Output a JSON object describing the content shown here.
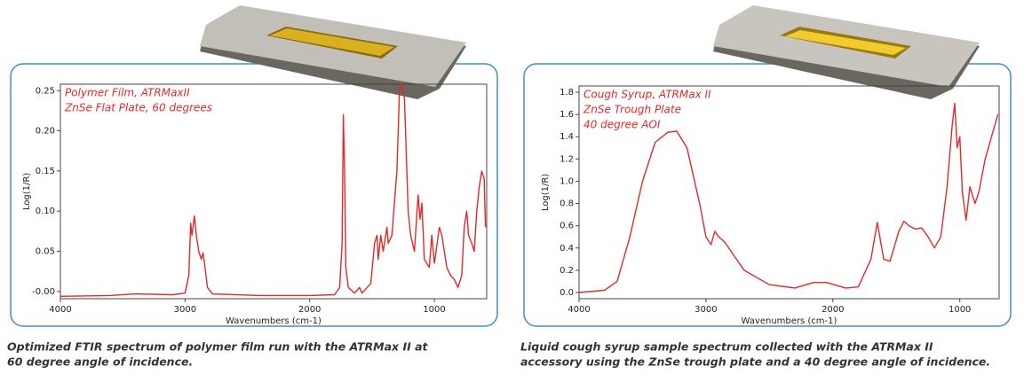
{
  "chart_data": [
    {
      "type": "line",
      "annotations": [
        "Polymer Film, ATRMaxII",
        "ZnSe Flat Plate, 60 degrees"
      ],
      "x_label": "Wavenumbers (cm-1)",
      "y_label": "Log(1/R)",
      "caption": [
        "Optimized FTIR spectrum of polymer film run with the ATRMax II at",
        "60 degree angle of incidence."
      ],
      "xlim": [
        4000,
        580
      ],
      "xticks": [
        4000,
        3000,
        2000,
        1000
      ],
      "ylim": [
        -0.009,
        0.258
      ],
      "yticks": [
        {
          "value": 0,
          "label": "-0.00"
        },
        0.05,
        {
          "value": 0.1,
          "label": "0.10"
        },
        0.15,
        {
          "value": 0.2,
          "label": "0.20"
        },
        0.25
      ],
      "series": [
        {
          "color": "#e02a2a",
          "x": [
            4000,
            3600,
            3400,
            3100,
            3000,
            2970,
            2955,
            2945,
            2925,
            2910,
            2890,
            2870,
            2855,
            2840,
            2820,
            2780,
            2400,
            2000,
            1800,
            1760,
            1740,
            1730,
            1720,
            1710,
            1690,
            1640,
            1600,
            1580,
            1510,
            1480,
            1460,
            1450,
            1430,
            1410,
            1380,
            1370,
            1340,
            1300,
            1280,
            1260,
            1240,
            1210,
            1190,
            1160,
            1130,
            1115,
            1100,
            1080,
            1040,
            1020,
            1000,
            960,
            940,
            900,
            870,
            840,
            810,
            780,
            760,
            740,
            725,
            700,
            680,
            660,
            640,
            620,
            600,
            590
          ],
          "values": [
            -0.006,
            -0.005,
            -0.003,
            -0.004,
            -0.002,
            0.02,
            0.085,
            0.07,
            0.094,
            0.07,
            0.05,
            0.04,
            0.048,
            0.03,
            0.005,
            -0.003,
            -0.005,
            -0.005,
            -0.004,
            0.005,
            0.06,
            0.22,
            0.15,
            0.03,
            0.005,
            -0.002,
            0.005,
            -0.002,
            0.01,
            0.06,
            0.07,
            0.04,
            0.07,
            0.05,
            0.08,
            0.06,
            0.07,
            0.15,
            0.25,
            0.258,
            0.24,
            0.1,
            0.07,
            0.05,
            0.12,
            0.09,
            0.11,
            0.04,
            0.03,
            0.07,
            0.035,
            0.08,
            0.07,
            0.03,
            0.02,
            0.015,
            0.005,
            0.02,
            0.08,
            0.1,
            0.07,
            0.06,
            0.05,
            0.1,
            0.13,
            0.15,
            0.14,
            0.08
          ]
        }
      ]
    },
    {
      "type": "line",
      "annotations": [
        "Cough Syrup, ATRMax II",
        "ZnSe Trough Plate",
        "40 degree AOI"
      ],
      "x_label": "Wavenumbers (cm-1)",
      "y_label": "Log(1/R)",
      "caption": [
        "Liquid cough syrup sample spectrum collected with the ATRMax II",
        "accessory using the ZnSe trough plate and a 40 degree angle of incidence."
      ],
      "xlim": [
        4000,
        690
      ],
      "xticks": [
        4000,
        3000,
        2000,
        1000
      ],
      "ylim": [
        -0.056,
        1.856
      ],
      "yticks": [
        {
          "value": 0,
          "label": "0.0"
        },
        0.2,
        0.4,
        0.6,
        0.8,
        {
          "value": 1,
          "label": "1.0"
        },
        1.2,
        1.4,
        1.6,
        1.8
      ],
      "series": [
        {
          "color": "#e02a2a",
          "x": [
            4000,
            3800,
            3700,
            3600,
            3500,
            3400,
            3300,
            3230,
            3150,
            3050,
            3000,
            2960,
            2930,
            2900,
            2850,
            2700,
            2500,
            2300,
            2150,
            2050,
            1900,
            1800,
            1700,
            1650,
            1600,
            1550,
            1480,
            1440,
            1400,
            1350,
            1300,
            1250,
            1200,
            1150,
            1100,
            1060,
            1040,
            1020,
            1000,
            980,
            950,
            920,
            880,
            850,
            800,
            750,
            700
          ],
          "values": [
            0.0,
            0.02,
            0.1,
            0.5,
            1.0,
            1.35,
            1.44,
            1.45,
            1.3,
            0.8,
            0.5,
            0.43,
            0.55,
            0.5,
            0.45,
            0.2,
            0.07,
            0.04,
            0.09,
            0.09,
            0.04,
            0.05,
            0.3,
            0.63,
            0.3,
            0.28,
            0.55,
            0.64,
            0.6,
            0.57,
            0.58,
            0.5,
            0.4,
            0.5,
            0.95,
            1.5,
            1.7,
            1.3,
            1.4,
            0.9,
            0.65,
            0.95,
            0.8,
            0.9,
            1.2,
            1.4,
            1.6
          ]
        }
      ]
    }
  ]
}
